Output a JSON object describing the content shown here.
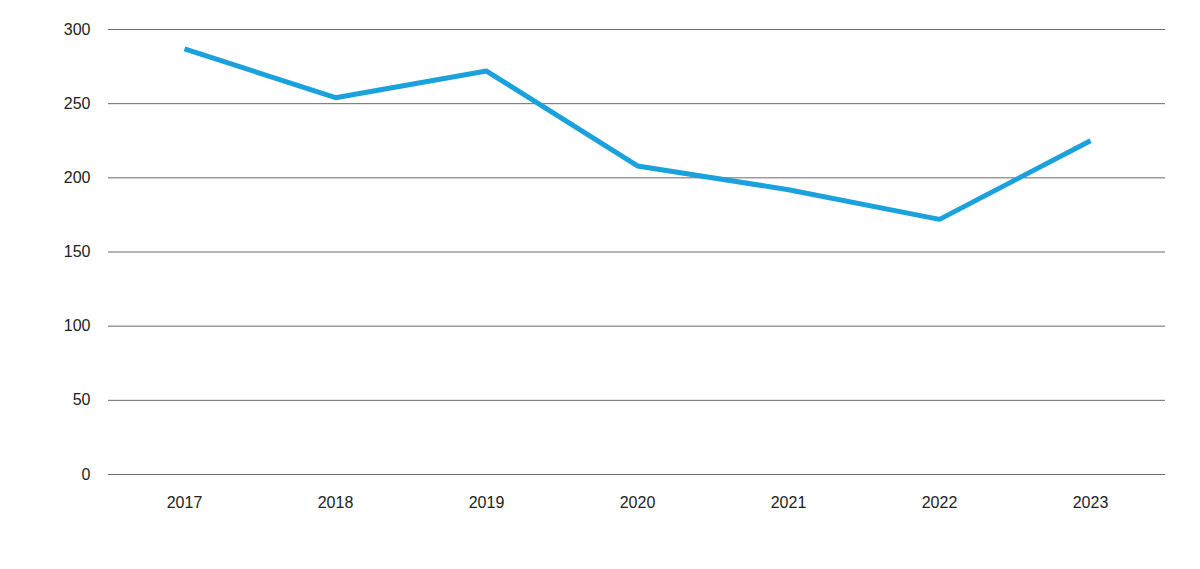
{
  "chart_data": {
    "type": "line",
    "categories": [
      "2017",
      "2018",
      "2019",
      "2020",
      "2021",
      "2022",
      "2023"
    ],
    "values": [
      287,
      254,
      272,
      208,
      192,
      172,
      225
    ],
    "color": "#1ba1dc",
    "ylim": [
      0,
      300
    ],
    "yticks": [
      0,
      50,
      100,
      150,
      200,
      250,
      300
    ],
    "grid": true
  }
}
